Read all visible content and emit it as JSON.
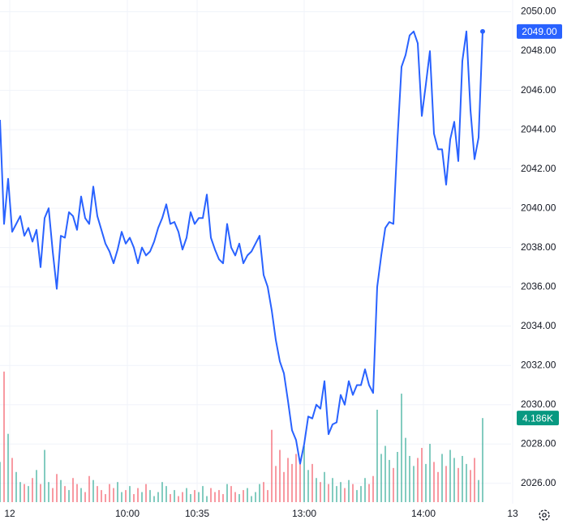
{
  "chart_data": {
    "type": "line",
    "x": [
      0,
      1,
      2,
      3,
      4,
      5,
      6,
      7,
      8,
      9,
      10,
      11,
      12,
      13,
      14,
      15,
      16,
      17,
      18,
      19,
      20,
      21,
      22,
      23,
      24,
      25,
      26,
      27,
      28,
      29,
      30,
      31,
      32,
      33,
      34,
      35,
      36,
      37,
      38,
      39,
      40,
      41,
      42,
      43,
      44,
      45,
      46,
      47,
      48,
      49,
      50,
      51,
      52,
      53,
      54,
      55,
      56,
      57,
      58,
      59,
      60,
      61,
      62,
      63,
      64,
      65,
      66,
      67,
      68,
      69,
      70,
      71,
      72,
      73,
      74,
      75,
      76,
      77,
      78,
      79,
      80,
      81,
      82,
      83,
      84,
      85,
      86,
      87,
      88,
      89,
      90,
      91,
      92,
      93,
      94,
      95,
      96,
      97,
      98,
      99,
      100,
      101,
      102,
      103,
      104,
      105,
      106,
      107,
      108,
      109,
      110,
      111,
      112,
      113,
      114,
      115,
      116,
      117,
      118,
      119
    ],
    "series": [
      {
        "color": "#2962ff",
        "values": [
          2044.5,
          2039.2,
          2041.5,
          2038.8,
          2039.2,
          2039.6,
          2038.6,
          2039.0,
          2038.3,
          2038.9,
          2037.0,
          2039.5,
          2040.0,
          2037.8,
          2035.9,
          2038.6,
          2038.5,
          2039.8,
          2039.6,
          2038.9,
          2040.6,
          2039.5,
          2039.2,
          2041.1,
          2039.6,
          2038.9,
          2038.2,
          2037.8,
          2037.2,
          2037.9,
          2038.8,
          2038.2,
          2038.5,
          2038.0,
          2037.2,
          2038.0,
          2037.6,
          2037.8,
          2038.3,
          2039.0,
          2039.5,
          2040.2,
          2039.2,
          2039.3,
          2038.8,
          2037.9,
          2038.5,
          2039.8,
          2039.2,
          2039.5,
          2039.5,
          2040.7,
          2038.5,
          2037.9,
          2037.4,
          2037.2,
          2039.2,
          2038.0,
          2037.6,
          2038.2,
          2037.2,
          2037.6,
          2037.8,
          2038.2,
          2038.6,
          2036.6,
          2036.0,
          2034.8,
          2033.3,
          2032.2,
          2031.6,
          2030.2,
          2028.7,
          2028.2,
          2027.0,
          2028.0,
          2029.4,
          2029.3,
          2030.0,
          2029.8,
          2031.2,
          2028.5,
          2029.0,
          2029.1,
          2030.5,
          2030.0,
          2031.2,
          2030.5,
          2031.0,
          2031.0,
          2031.8,
          2031.0,
          2030.6,
          2036.0,
          2037.6,
          2039.0,
          2039.3,
          2039.2,
          2043.5,
          2047.2,
          2047.8,
          2048.8,
          2049.0,
          2048.4,
          2044.7,
          2046.3,
          2048.0,
          2043.8,
          2043.0,
          2043.0,
          2041.2,
          2043.5,
          2044.4,
          2042.4,
          2047.5,
          2049.0,
          2045.0,
          2042.5,
          2043.6,
          2049.0
        ],
        "value_labels": [
          null,
          null,
          null,
          null,
          null,
          null,
          null,
          null,
          null,
          null,
          null,
          null,
          null,
          null,
          null,
          null,
          null,
          null,
          null,
          null,
          null,
          null,
          null,
          null,
          null,
          null,
          null,
          null,
          null,
          null,
          null,
          null,
          null,
          null,
          null,
          null,
          null,
          null,
          null,
          null,
          null,
          null,
          null,
          null,
          null,
          null,
          null,
          null,
          null,
          null,
          null,
          null,
          null,
          null,
          null,
          null,
          null,
          null,
          null,
          null,
          null,
          null,
          null,
          null,
          null,
          null,
          null,
          null,
          null,
          null,
          null,
          null,
          null,
          null,
          null,
          null,
          null,
          null,
          null,
          null,
          null,
          null,
          null,
          null,
          null,
          null,
          null,
          null,
          null,
          null,
          null,
          null,
          null,
          null,
          null,
          null,
          null,
          null,
          null,
          null,
          null,
          null,
          null,
          null,
          null,
          null,
          null,
          null,
          null,
          null,
          null,
          null,
          null,
          null,
          null,
          null,
          null,
          null,
          null,
          "2049.00"
        ]
      },
      {
        "axis": "y2",
        "up_color": "#089981",
        "down_color": "#f23645",
        "label_color": "#089981",
        "values": [
          2.0,
          6.5,
          3.4,
          2.2,
          1.5,
          1.0,
          0.9,
          0.8,
          1.2,
          1.6,
          0.9,
          2.6,
          1.0,
          0.7,
          1.4,
          1.1,
          0.8,
          0.6,
          1.2,
          0.9,
          0.7,
          0.5,
          1.3,
          1.1,
          0.8,
          0.6,
          0.4,
          0.9,
          0.7,
          1.0,
          0.5,
          0.6,
          0.8,
          0.4,
          0.7,
          0.5,
          0.9,
          0.6,
          0.3,
          0.5,
          1.0,
          0.8,
          0.4,
          0.6,
          0.3,
          0.5,
          0.7,
          0.4,
          0.6,
          0.5,
          0.8,
          0.3,
          0.7,
          0.5,
          0.6,
          0.4,
          0.9,
          0.8,
          0.5,
          0.4,
          0.6,
          0.7,
          0.3,
          0.5,
          0.9,
          1.0,
          0.6,
          3.6,
          1.8,
          2.6,
          1.5,
          2.2,
          1.9,
          2.4,
          2.1,
          2.8,
          1.6,
          1.9,
          1.2,
          1.0,
          1.5,
          0.9,
          1.2,
          0.8,
          1.0,
          0.7,
          1.1,
          0.9,
          0.6,
          0.8,
          1.2,
          0.9,
          1.3,
          4.6,
          2.4,
          2.8,
          2.1,
          1.7,
          2.5,
          5.4,
          3.2,
          2.3,
          1.8,
          2.2,
          2.7,
          1.9,
          2.9,
          2.0,
          1.5,
          2.4,
          1.8,
          2.6,
          2.2,
          1.7,
          2.3,
          1.9,
          1.6,
          2.2,
          1.1,
          4.186
        ],
        "value_labels": [
          null,
          null,
          null,
          null,
          null,
          null,
          null,
          null,
          null,
          null,
          null,
          null,
          null,
          null,
          null,
          null,
          null,
          null,
          null,
          null,
          null,
          null,
          null,
          null,
          null,
          null,
          null,
          null,
          null,
          null,
          null,
          null,
          null,
          null,
          null,
          null,
          null,
          null,
          null,
          null,
          null,
          null,
          null,
          null,
          null,
          null,
          null,
          null,
          null,
          null,
          null,
          null,
          null,
          null,
          null,
          null,
          null,
          null,
          null,
          null,
          null,
          null,
          null,
          null,
          null,
          null,
          null,
          null,
          null,
          null,
          null,
          null,
          null,
          null,
          null,
          null,
          null,
          null,
          null,
          null,
          null,
          null,
          null,
          null,
          null,
          null,
          null,
          null,
          null,
          null,
          null,
          null,
          null,
          null,
          null,
          null,
          null,
          null,
          null,
          null,
          null,
          null,
          null,
          null,
          null,
          null,
          null,
          null,
          null,
          null,
          null,
          null,
          null,
          null,
          null,
          null,
          null,
          null,
          null,
          "4.186K"
        ]
      }
    ],
    "xlim": [
      0,
      128
    ],
    "xticks": [
      {
        "value": 2.4,
        "label": "12"
      },
      {
        "value": 31.4,
        "label": "10:00"
      },
      {
        "value": 48.6,
        "label": "10:35"
      },
      {
        "value": 75,
        "label": "13:00"
      },
      {
        "value": 104.4,
        "label": "14:00"
      },
      {
        "value": 126.4,
        "label": "13"
      }
    ],
    "ylim": [
      2025,
      2050.6
    ],
    "yticks": [
      {
        "value": 2026,
        "label": "2026.00"
      },
      {
        "value": 2028,
        "label": "2028.00"
      },
      {
        "value": 2030,
        "label": "2030.00"
      },
      {
        "value": 2032,
        "label": "2032.00"
      },
      {
        "value": 2034,
        "label": "2034.00"
      },
      {
        "value": 2036,
        "label": "2036.00"
      },
      {
        "value": 2038,
        "label": "2038.00"
      },
      {
        "value": 2040,
        "label": "2040.00"
      },
      {
        "value": 2042,
        "label": "2042.00"
      },
      {
        "value": 2044,
        "label": "2044.00"
      },
      {
        "value": 2046,
        "label": "2046.00"
      },
      {
        "value": 2048,
        "label": "2048.00"
      },
      {
        "value": 2050,
        "label": "2050.00"
      }
    ],
    "y2lim": [
      0,
      25
    ],
    "grid": true
  }
}
